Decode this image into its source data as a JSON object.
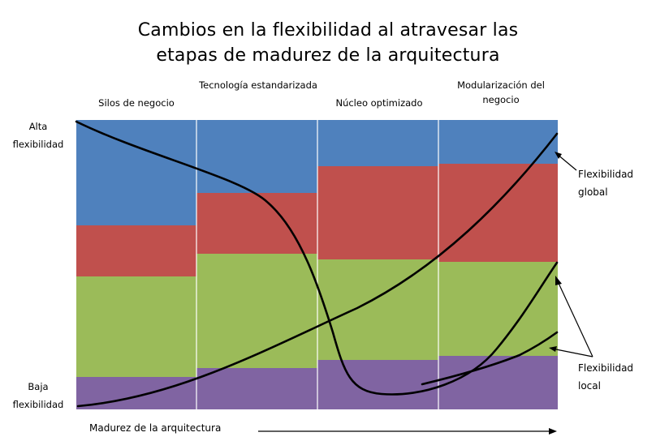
{
  "title": {
    "line1": "Cambios en la flexibilidad al atravesar las",
    "line2": "etapas de madurez de la arquitectura"
  },
  "stages": [
    {
      "label": "Silos de negocio"
    },
    {
      "label": "Tecnología estandarizada"
    },
    {
      "label": "Núcleo optimizado"
    },
    {
      "label": "Modularización del negocio"
    }
  ],
  "y_axis": {
    "top_label": "Alta flexibilidad",
    "bottom_label": "Baja flexibilidad"
  },
  "x_axis": {
    "label": "Madurez de la arquitectura"
  },
  "annotations": {
    "global_label": "Flexibilidad global",
    "local_label": "Flexibilidad local"
  },
  "colors": {
    "blue": "#4F81BD",
    "red": "#C0504D",
    "green": "#9BBB59",
    "purple": "#8064A2",
    "line": "#000000"
  }
}
